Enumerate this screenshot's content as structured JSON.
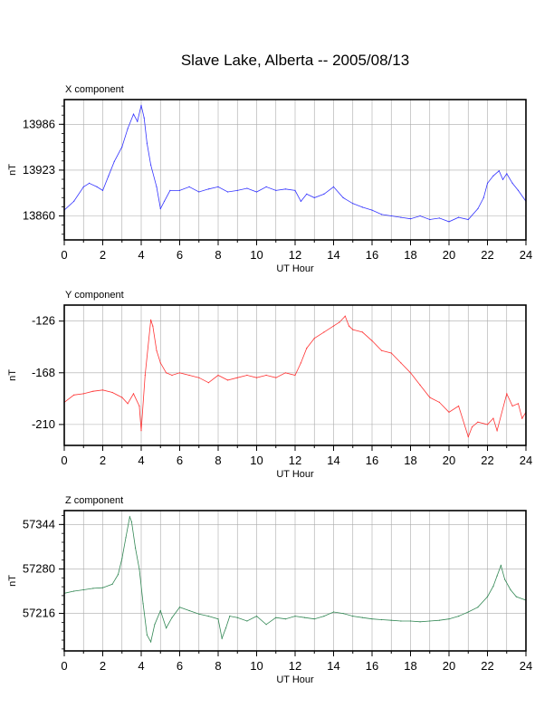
{
  "title": "Slave Lake, Alberta -- 2005/08/13",
  "chart_data": [
    {
      "type": "line",
      "panel_label": "X component",
      "xlabel": "UT Hour",
      "ylabel": "nT",
      "xlim": [
        0,
        24
      ],
      "ylim": [
        13827,
        14020
      ],
      "x_ticks": [
        0,
        2,
        4,
        6,
        8,
        10,
        12,
        14,
        16,
        18,
        20,
        22,
        24
      ],
      "y_ticks": [
        13860,
        13923,
        13986
      ],
      "grid": true,
      "color": "#3333ff",
      "x": [
        0,
        0.5,
        1.0,
        1.3,
        1.7,
        2.0,
        2.3,
        2.6,
        3.0,
        3.3,
        3.6,
        3.8,
        4.0,
        4.15,
        4.3,
        4.5,
        4.8,
        5.0,
        5.2,
        5.5,
        6.0,
        6.5,
        7.0,
        7.5,
        8.0,
        8.5,
        9.0,
        9.5,
        10.0,
        10.5,
        11.0,
        11.5,
        12.0,
        12.3,
        12.6,
        13.0,
        13.5,
        14.0,
        14.5,
        15.0,
        15.5,
        16.0,
        16.5,
        17.0,
        17.5,
        18.0,
        18.5,
        19.0,
        19.5,
        20.0,
        20.5,
        21.0,
        21.5,
        21.8,
        22.0,
        22.3,
        22.6,
        22.8,
        23.0,
        23.3,
        23.6,
        24.0
      ],
      "values": [
        13868,
        13880,
        13900,
        13905,
        13900,
        13895,
        13915,
        13935,
        13955,
        13980,
        14000,
        13990,
        14012,
        13995,
        13960,
        13930,
        13900,
        13870,
        13880,
        13895,
        13895,
        13900,
        13893,
        13897,
        13900,
        13893,
        13895,
        13898,
        13893,
        13900,
        13895,
        13897,
        13895,
        13880,
        13890,
        13885,
        13890,
        13900,
        13885,
        13877,
        13872,
        13868,
        13862,
        13860,
        13858,
        13856,
        13860,
        13855,
        13857,
        13852,
        13858,
        13855,
        13870,
        13885,
        13905,
        13915,
        13922,
        13910,
        13918,
        13905,
        13895,
        13880
      ]
    },
    {
      "type": "line",
      "panel_label": "Y component",
      "xlabel": "UT Hour",
      "ylabel": "nT",
      "xlim": [
        0,
        24
      ],
      "ylim": [
        -227,
        -113
      ],
      "x_ticks": [
        0,
        2,
        4,
        6,
        8,
        10,
        12,
        14,
        16,
        18,
        20,
        22,
        24
      ],
      "y_ticks": [
        -126,
        -168,
        -210
      ],
      "grid": true,
      "color": "#ff3333",
      "x": [
        0,
        0.5,
        1.0,
        1.5,
        2.0,
        2.5,
        3.0,
        3.3,
        3.6,
        3.9,
        4.0,
        4.2,
        4.5,
        4.6,
        4.8,
        5.0,
        5.3,
        5.6,
        6.0,
        6.5,
        7.0,
        7.5,
        8.0,
        8.5,
        9.0,
        9.5,
        10.0,
        10.5,
        11.0,
        11.5,
        12.0,
        12.3,
        12.6,
        13.0,
        13.5,
        14.0,
        14.3,
        14.6,
        14.8,
        15.0,
        15.5,
        16.0,
        16.5,
        17.0,
        17.5,
        18.0,
        18.5,
        19.0,
        19.5,
        20.0,
        20.5,
        21.0,
        21.2,
        21.5,
        22.0,
        22.3,
        22.5,
        23.0,
        23.3,
        23.6,
        23.8,
        24.0
      ],
      "values": [
        -192,
        -186,
        -185,
        -183,
        -182,
        -184,
        -188,
        -193,
        -185,
        -195,
        -215,
        -170,
        -125,
        -130,
        -150,
        -160,
        -168,
        -170,
        -168,
        -170,
        -172,
        -176,
        -170,
        -174,
        -172,
        -170,
        -172,
        -170,
        -172,
        -168,
        -170,
        -160,
        -148,
        -140,
        -135,
        -130,
        -127,
        -122,
        -130,
        -133,
        -135,
        -142,
        -150,
        -152,
        -160,
        -168,
        -178,
        -188,
        -192,
        -200,
        -195,
        -220,
        -212,
        -208,
        -210,
        -205,
        -215,
        -185,
        -195,
        -193,
        -205,
        -200
      ]
    },
    {
      "type": "line",
      "panel_label": "Z component",
      "xlabel": "UT Hour",
      "ylabel": "nT",
      "xlim": [
        0,
        24
      ],
      "ylim": [
        57162,
        57364
      ],
      "x_ticks": [
        0,
        2,
        4,
        6,
        8,
        10,
        12,
        14,
        16,
        18,
        20,
        22,
        24
      ],
      "y_ticks": [
        57216,
        57280,
        57344
      ],
      "grid": true,
      "color": "#338855",
      "x": [
        0,
        0.5,
        1.0,
        1.5,
        2.0,
        2.5,
        2.8,
        3.0,
        3.2,
        3.4,
        3.5,
        3.7,
        3.9,
        4.1,
        4.3,
        4.5,
        4.7,
        5.0,
        5.3,
        5.6,
        6.0,
        6.5,
        7.0,
        7.5,
        8.0,
        8.2,
        8.4,
        8.6,
        9.0,
        9.5,
        10.0,
        10.5,
        11.0,
        11.5,
        12.0,
        12.5,
        13.0,
        13.5,
        14.0,
        14.5,
        15.0,
        15.5,
        16.0,
        16.5,
        17.0,
        17.5,
        18.0,
        18.5,
        19.0,
        19.5,
        20.0,
        20.5,
        21.0,
        21.5,
        22.0,
        22.3,
        22.5,
        22.7,
        22.9,
        23.2,
        23.5,
        24.0
      ],
      "values": [
        57245,
        57248,
        57250,
        57252,
        57253,
        57258,
        57272,
        57295,
        57325,
        57355,
        57348,
        57310,
        57280,
        57230,
        57185,
        57175,
        57200,
        57220,
        57195,
        57210,
        57225,
        57220,
        57215,
        57212,
        57208,
        57180,
        57195,
        57212,
        57210,
        57205,
        57212,
        57200,
        57210,
        57208,
        57212,
        57210,
        57208,
        57212,
        57218,
        57216,
        57212,
        57210,
        57208,
        57207,
        57206,
        57205,
        57205,
        57204,
        57205,
        57206,
        57208,
        57212,
        57218,
        57225,
        57240,
        57255,
        57270,
        57285,
        57265,
        57250,
        57240,
        57235
      ]
    }
  ]
}
